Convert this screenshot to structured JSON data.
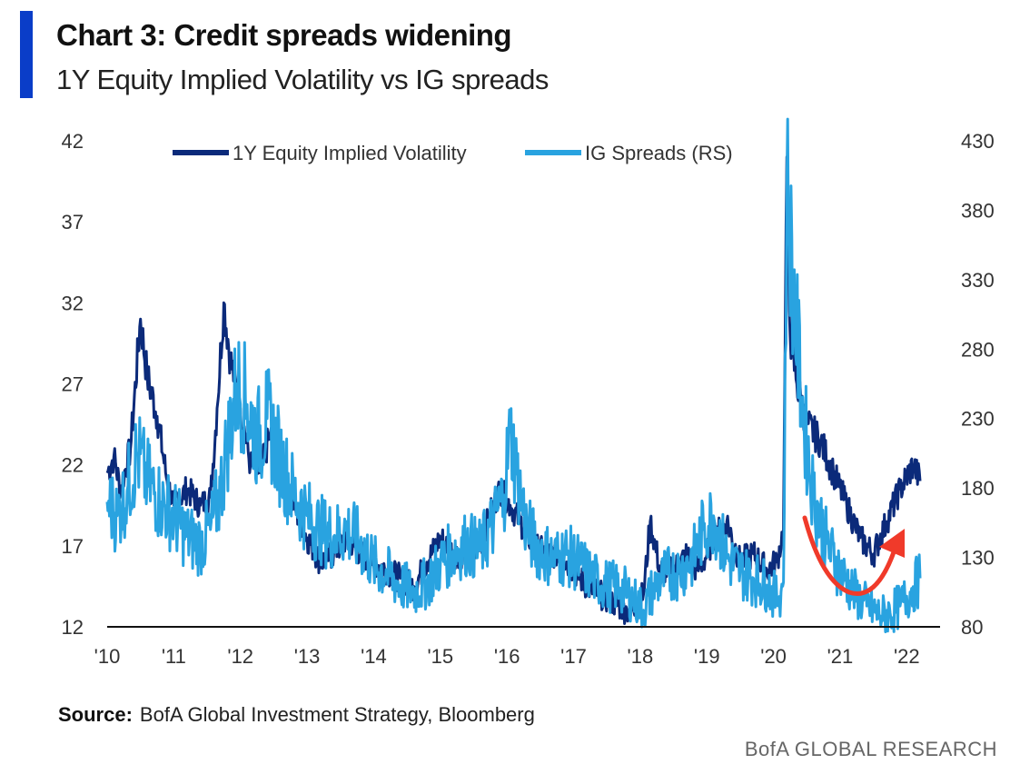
{
  "header": {
    "title": "Chart 3: Credit spreads widening",
    "subtitle": "1Y Equity Implied Volatility vs IG spreads"
  },
  "footer": {
    "source_label": "Source:",
    "source_text": "BofA Global Investment Strategy, Bloomberg",
    "brand": "BofA GLOBAL RESEARCH"
  },
  "colors": {
    "accent": "#0a3dc8",
    "vol": "#0b2a7a",
    "ig": "#29a3e0",
    "arrow": "#f03a2a",
    "axis": "#111111"
  },
  "chart_data": {
    "type": "line",
    "title": "Chart 3: Credit spreads widening",
    "subtitle": "1Y Equity Implied Volatility vs IG spreads",
    "x_ticks": [
      "'10",
      "'11",
      "'12",
      "'13",
      "'14",
      "'15",
      "'16",
      "'17",
      "'18",
      "'19",
      "'20",
      "'21",
      "'22"
    ],
    "xlim": [
      2010,
      2022.5
    ],
    "left_axis": {
      "ylim": [
        12,
        42
      ],
      "ticks": [
        "12",
        "17",
        "22",
        "27",
        "32",
        "37",
        "42"
      ]
    },
    "right_axis": {
      "ylim": [
        80,
        430
      ],
      "ticks": [
        "80",
        "130",
        "180",
        "230",
        "280",
        "330",
        "380",
        "430"
      ]
    },
    "legend_position": "top",
    "series": [
      {
        "name": "1Y Equity Implied Volatility",
        "axis": "left",
        "x": [
          2010.0,
          2010.1,
          2010.2,
          2010.35,
          2010.5,
          2010.6,
          2010.75,
          2010.9,
          2011.0,
          2011.2,
          2011.4,
          2011.55,
          2011.65,
          2011.75,
          2011.85,
          2012.0,
          2012.15,
          2012.3,
          2012.45,
          2012.6,
          2012.8,
          2013.0,
          2013.2,
          2013.4,
          2013.6,
          2013.8,
          2014.0,
          2014.2,
          2014.4,
          2014.6,
          2014.8,
          2015.0,
          2015.2,
          2015.4,
          2015.6,
          2015.75,
          2015.9,
          2016.05,
          2016.2,
          2016.4,
          2016.6,
          2016.8,
          2017.0,
          2017.2,
          2017.4,
          2017.6,
          2017.8,
          2017.95,
          2018.05,
          2018.15,
          2018.3,
          2018.5,
          2018.7,
          2018.85,
          2018.95,
          2019.1,
          2019.3,
          2019.5,
          2019.7,
          2019.9,
          2020.05,
          2020.15,
          2020.2,
          2020.25,
          2020.35,
          2020.5,
          2020.7,
          2020.9,
          2021.1,
          2021.3,
          2021.5,
          2021.7,
          2021.9,
          2022.1,
          2022.2
        ],
        "values": [
          21.5,
          22.5,
          20.5,
          23.0,
          31.0,
          27.5,
          25.0,
          21.0,
          19.5,
          20.5,
          19.5,
          20.0,
          25.5,
          32.0,
          28.5,
          25.5,
          22.0,
          21.5,
          24.0,
          21.0,
          19.5,
          17.5,
          16.0,
          16.5,
          17.5,
          16.5,
          16.0,
          15.5,
          15.0,
          14.5,
          16.0,
          17.5,
          16.5,
          16.5,
          17.0,
          19.0,
          20.5,
          19.5,
          18.5,
          17.0,
          16.5,
          16.5,
          15.5,
          14.5,
          14.0,
          13.5,
          13.0,
          13.5,
          14.0,
          18.5,
          15.5,
          15.5,
          16.5,
          15.5,
          16.0,
          17.5,
          18.5,
          16.0,
          16.5,
          15.5,
          16.0,
          18.0,
          41.0,
          30.0,
          27.0,
          24.5,
          23.5,
          21.5,
          19.5,
          17.5,
          16.5,
          18.5,
          20.5,
          22.0,
          21.0
        ]
      },
      {
        "name": "IG Spreads (RS)",
        "axis": "right",
        "x": [
          2010.0,
          2010.15,
          2010.3,
          2010.45,
          2010.6,
          2010.8,
          2011.0,
          2011.2,
          2011.4,
          2011.55,
          2011.7,
          2011.8,
          2011.95,
          2012.1,
          2012.25,
          2012.4,
          2012.6,
          2012.8,
          2013.0,
          2013.2,
          2013.4,
          2013.6,
          2013.8,
          2014.0,
          2014.2,
          2014.4,
          2014.6,
          2014.8,
          2015.0,
          2015.2,
          2015.4,
          2015.6,
          2015.8,
          2015.95,
          2016.05,
          2016.15,
          2016.3,
          2016.5,
          2016.7,
          2016.9,
          2017.1,
          2017.3,
          2017.5,
          2017.7,
          2017.9,
          2018.05,
          2018.2,
          2018.4,
          2018.6,
          2018.8,
          2018.95,
          2019.1,
          2019.3,
          2019.5,
          2019.7,
          2019.9,
          2020.05,
          2020.15,
          2020.2,
          2020.3,
          2020.45,
          2020.6,
          2020.8,
          2021.0,
          2021.2,
          2021.4,
          2021.6,
          2021.75,
          2021.9,
          2022.05,
          2022.2
        ],
        "values": [
          170,
          160,
          178,
          205,
          185,
          170,
          160,
          145,
          140,
          150,
          178,
          210,
          255,
          240,
          215,
          230,
          200,
          175,
          160,
          150,
          145,
          150,
          140,
          125,
          118,
          110,
          105,
          112,
          125,
          135,
          140,
          135,
          155,
          175,
          220,
          190,
          150,
          135,
          130,
          132,
          125,
          115,
          110,
          108,
          100,
          92,
          108,
          118,
          120,
          130,
          150,
          160,
          130,
          120,
          115,
          110,
          100,
          112,
          400,
          320,
          230,
          175,
          140,
          120,
          105,
          95,
          88,
          90,
          95,
          105,
          115
        ]
      }
    ],
    "annotation": "red curved arrow pointing up-right"
  }
}
